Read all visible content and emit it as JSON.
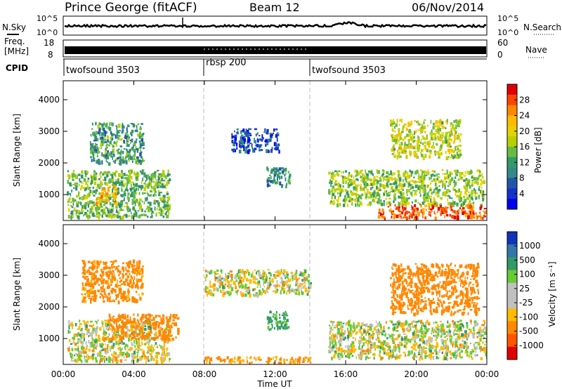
{
  "header": {
    "title": "Prince George (fitACF)",
    "beam": "Beam 12",
    "date": "06/Nov/2014"
  },
  "status_panels": {
    "nsky_label": "N.Sky",
    "nsearch_label": "N.Search",
    "freq_label_1": "Freq.",
    "freq_label_2": "[MHz]",
    "nave_label": "Nave",
    "cpid_label": "CPID",
    "noise_ticks_left": [
      "10^5",
      "10^0"
    ],
    "noise_ticks_right": [
      "10^5",
      "10^0"
    ],
    "freq_ticks_left": [
      "18",
      "8"
    ],
    "nave_ticks_right": [
      "60",
      "0"
    ],
    "cpid_segments": [
      {
        "label": "twofsound 3503",
        "start": 0,
        "end": 8
      },
      {
        "label": "rbsp 200",
        "start": 8,
        "end": 14
      },
      {
        "label": "twofsound 3503",
        "start": 14,
        "end": 24
      }
    ]
  },
  "axes": {
    "xlabel": "Time UT",
    "ylabel_power": "Slant Range [km]",
    "ylabel_velocity": "Slant Range [km]",
    "xticks": [
      "00:00",
      "04:00",
      "08:00",
      "12:00",
      "16:00",
      "20:00",
      "00:00"
    ],
    "yticks": [
      "1000",
      "2000",
      "3000",
      "4000"
    ]
  },
  "colorbars": {
    "power": {
      "label": "Power [dB]",
      "ticks": [
        "28",
        "24",
        "20",
        "16",
        "12",
        "8",
        "4"
      ],
      "colors": [
        "#e00000",
        "#ff4400",
        "#ff8800",
        "#ffbb00",
        "#e6d200",
        "#b8d000",
        "#66bb44",
        "#339966",
        "#338888",
        "#2255aa",
        "#1133cc",
        "#0000ee"
      ]
    },
    "velocity": {
      "label": "Velocity [m s⁻¹]",
      "ticks": [
        "1000",
        "500",
        "100",
        "25",
        "-25",
        "-100",
        "-500",
        "-1000"
      ],
      "colors": [
        "#1133bb",
        "#3377aa",
        "#339966",
        "#66cc33",
        "#c0c0c0",
        "#c0c0c0",
        "#ffbb00",
        "#ff8800",
        "#ff5500",
        "#e00000"
      ]
    }
  },
  "chart_data": [
    {
      "type": "heatmap",
      "name": "",
      "x": {
        "label": "Time UT",
        "range": [
          0,
          24
        ],
        "unit": "hours"
      },
      "y": {
        "label": "Slant Range [km]",
        "range": [
          180,
          4600
        ],
        "ticks": [
          1000,
          2000,
          3000,
          4000
        ]
      },
      "colorbar": {
        "label": "Power [dB]",
        "range": [
          0,
          32
        ],
        "ticks": [
          4,
          8,
          12,
          16,
          20,
          24,
          28
        ]
      },
      "markers": [
        {
          "x": 8,
          "style": "dashed"
        },
        {
          "x": 14,
          "style": "dashed"
        }
      ],
      "regions": [
        {
          "x": [
            0.2,
            6.0
          ],
          "y": [
            300,
            1800
          ],
          "value": 14
        },
        {
          "x": [
            1.8,
            3.0
          ],
          "y": [
            700,
            1300
          ],
          "value": 22
        },
        {
          "x": [
            1.5,
            4.5
          ],
          "y": [
            2000,
            3300
          ],
          "value": 12
        },
        {
          "x": [
            9.5,
            12.2
          ],
          "y": [
            2400,
            3100
          ],
          "value": 6
        },
        {
          "x": [
            11.5,
            12.8
          ],
          "y": [
            1300,
            1900
          ],
          "value": 10
        },
        {
          "x": [
            15.0,
            23.8
          ],
          "y": [
            700,
            1800
          ],
          "value": 16
        },
        {
          "x": [
            17.8,
            24.0
          ],
          "y": [
            280,
            700
          ],
          "value": 28
        },
        {
          "x": [
            18.5,
            22.5
          ],
          "y": [
            2200,
            3400
          ],
          "value": 18
        }
      ]
    },
    {
      "type": "heatmap",
      "name": "",
      "x": {
        "label": "Time UT",
        "range": [
          0,
          24
        ],
        "unit": "hours"
      },
      "y": {
        "label": "Slant Range [km]",
        "range": [
          180,
          4600
        ],
        "ticks": [
          1000,
          2000,
          3000,
          4000
        ]
      },
      "colorbar": {
        "label": "Velocity [m s⁻¹]",
        "ticks": [
          1000,
          500,
          100,
          25,
          -25,
          -100,
          -500,
          -1000
        ]
      },
      "markers": [
        {
          "x": 8,
          "style": "dashed"
        },
        {
          "x": 14,
          "style": "dashed"
        }
      ],
      "regions": [
        {
          "x": [
            0.2,
            6.0
          ],
          "y": [
            300,
            1600
          ],
          "value": 0
        },
        {
          "x": [
            2.5,
            6.5
          ],
          "y": [
            1000,
            1800
          ],
          "value": -300
        },
        {
          "x": [
            1.0,
            4.5
          ],
          "y": [
            2200,
            3500
          ],
          "value": -200
        },
        {
          "x": [
            8.0,
            14.0
          ],
          "y": [
            2400,
            3200
          ],
          "value": 0
        },
        {
          "x": [
            11.5,
            12.8
          ],
          "y": [
            1300,
            1900
          ],
          "value": 150
        },
        {
          "x": [
            15.0,
            24.0
          ],
          "y": [
            400,
            1600
          ],
          "value": 0
        },
        {
          "x": [
            18.5,
            23.5
          ],
          "y": [
            1800,
            3400
          ],
          "value": -250
        },
        {
          "x": [
            8.0,
            14.0
          ],
          "y": [
            250,
            450
          ],
          "value": -150
        }
      ]
    }
  ]
}
